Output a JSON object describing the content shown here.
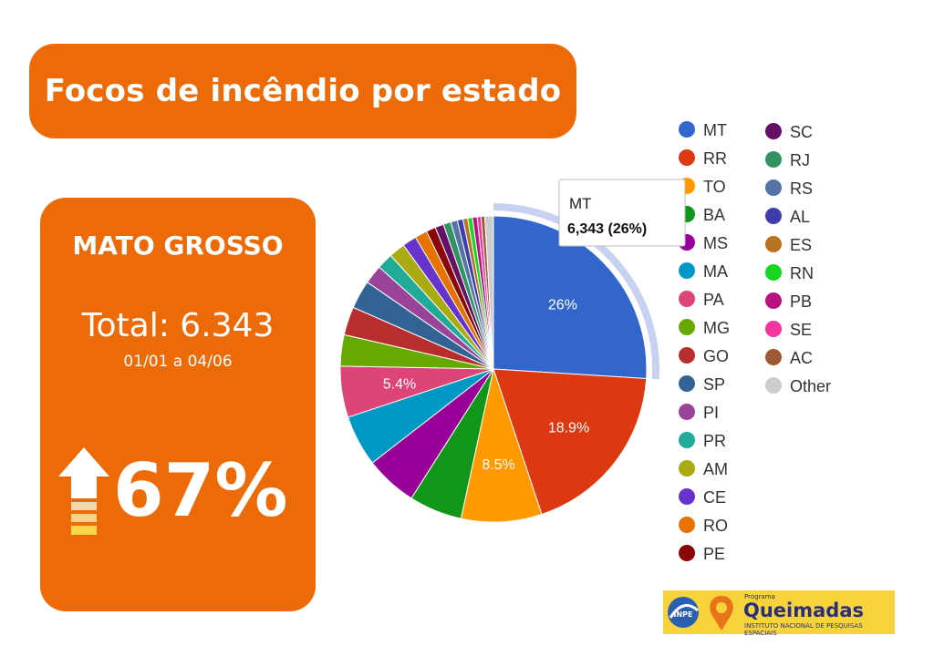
{
  "title": "Focos de incêndio por estado",
  "card": {
    "state": "MATO GROSSO",
    "total": "Total: 6.343",
    "period": "01/01 a 04/06",
    "change": "67%"
  },
  "logo": {
    "small": "Programa",
    "name": "Queimadas",
    "subtitle": "INSTITUTO NACIONAL DE PESQUISAS ESPACIAIS",
    "mark": "INPE"
  },
  "chart_data": {
    "type": "pie",
    "tooltip": {
      "label": "MT",
      "value": "6,343 (26%)"
    },
    "slices": [
      {
        "label": "MT",
        "value": 26.0,
        "color": "#3366cc",
        "display": "26%"
      },
      {
        "label": "RR",
        "value": 18.9,
        "color": "#dc3912",
        "display": "18.9%"
      },
      {
        "label": "TO",
        "value": 8.5,
        "color": "#ff9900",
        "display": "8.5%"
      },
      {
        "label": "BA",
        "value": 5.6,
        "color": "#109618",
        "display": ""
      },
      {
        "label": "MS",
        "value": 5.5,
        "color": "#990099",
        "display": ""
      },
      {
        "label": "MA",
        "value": 5.4,
        "color": "#0099c6",
        "display": ""
      },
      {
        "label": "PA",
        "value": 5.4,
        "color": "#dd4477",
        "display": "5.4%"
      },
      {
        "label": "MG",
        "value": 3.3,
        "color": "#66aa00",
        "display": ""
      },
      {
        "label": "GO",
        "value": 3.0,
        "color": "#b82e2e",
        "display": ""
      },
      {
        "label": "SP",
        "value": 3.0,
        "color": "#316395",
        "display": ""
      },
      {
        "label": "PI",
        "value": 2.0,
        "color": "#994499",
        "display": ""
      },
      {
        "label": "PR",
        "value": 1.7,
        "color": "#22aa99",
        "display": ""
      },
      {
        "label": "AM",
        "value": 1.7,
        "color": "#aaaa11",
        "display": ""
      },
      {
        "label": "CE",
        "value": 1.5,
        "color": "#6633cc",
        "display": ""
      },
      {
        "label": "RO",
        "value": 1.3,
        "color": "#e67300",
        "display": ""
      },
      {
        "label": "PE",
        "value": 1.0,
        "color": "#8b0707",
        "display": ""
      },
      {
        "label": "SC",
        "value": 0.9,
        "color": "#651067",
        "display": ""
      },
      {
        "label": "RJ",
        "value": 0.8,
        "color": "#329262",
        "display": ""
      },
      {
        "label": "RS",
        "value": 0.7,
        "color": "#5574a6",
        "display": ""
      },
      {
        "label": "AL",
        "value": 0.6,
        "color": "#3b3eac",
        "display": ""
      },
      {
        "label": "ES",
        "value": 0.5,
        "color": "#b77322",
        "display": ""
      },
      {
        "label": "RN",
        "value": 0.5,
        "color": "#16d620",
        "display": ""
      },
      {
        "label": "PB",
        "value": 0.5,
        "color": "#b91383",
        "display": ""
      },
      {
        "label": "SE",
        "value": 0.4,
        "color": "#f4359e",
        "display": ""
      },
      {
        "label": "AC",
        "value": 0.4,
        "color": "#9c5935",
        "display": ""
      },
      {
        "label": "Other",
        "value": 0.9,
        "color": "#cccccc",
        "display": ""
      }
    ]
  }
}
